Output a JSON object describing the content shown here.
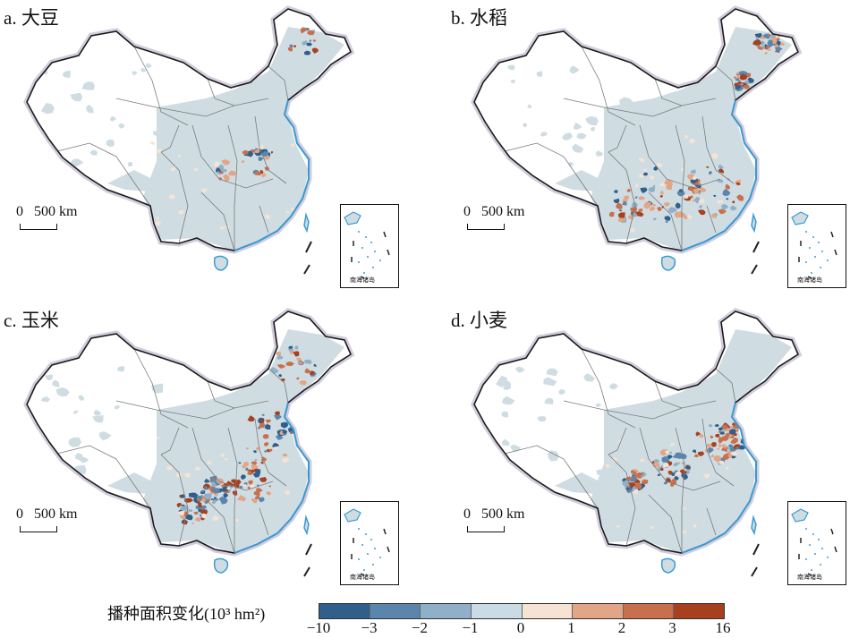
{
  "panels": [
    {
      "label": "a. 大豆",
      "scale_text": "0   500 km",
      "inset_label": "南海诸岛"
    },
    {
      "label": "b. 水稻",
      "scale_text": "0   500 km",
      "inset_label": "南海诸岛"
    },
    {
      "label": "c. 玉米",
      "scale_text": "0   500 km",
      "inset_label": "南海诸岛"
    },
    {
      "label": "d. 小麦",
      "scale_text": "0   500 km",
      "inset_label": "南海诸岛"
    }
  ],
  "legend": {
    "title": "播种面积变化(10³ hm²)",
    "ticks": [
      "−10",
      "−3",
      "−2",
      "−1",
      "0",
      "1",
      "2",
      "3",
      "16"
    ],
    "colors": [
      "#2f5f8a",
      "#5a86ad",
      "#8fb0c8",
      "#c9dce6",
      "#f6e3d3",
      "#e2a585",
      "#c8704d",
      "#a8401f"
    ]
  },
  "colors": {
    "land": "#cfdde3",
    "outline": "#1a1a1a",
    "halo": "#9b90b3",
    "coast": "#3a9bd4",
    "boundary": "#7a7a7a"
  }
}
